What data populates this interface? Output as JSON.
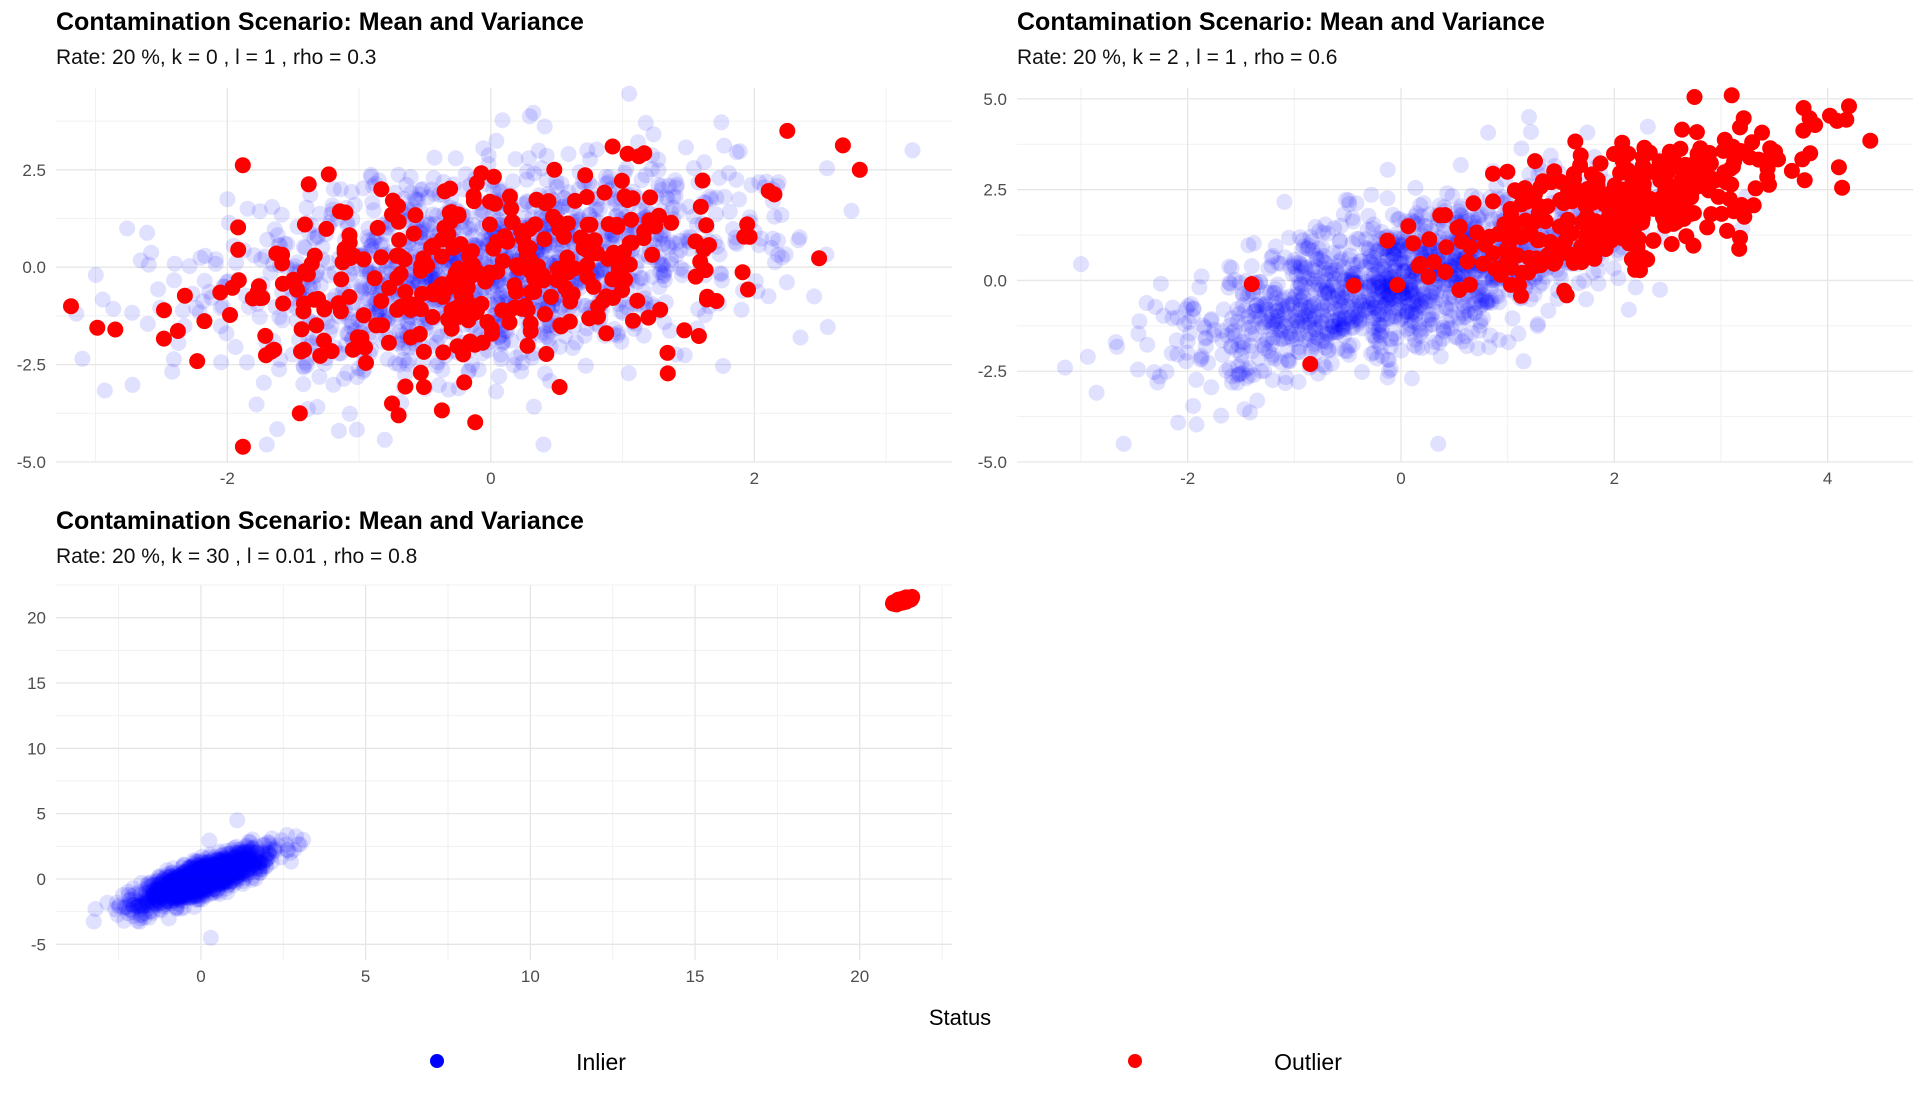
{
  "legend": {
    "title": "Status",
    "items": [
      {
        "label": "Inlier",
        "color": "#0000ff"
      },
      {
        "label": "Outlier",
        "color": "#ff0000"
      }
    ]
  },
  "chart_data": [
    {
      "type": "scatter",
      "title": "Contamination Scenario: Mean and Variance",
      "subtitle": "Rate: 20 %, k = 0 , l = 1 , rho = 0.3",
      "xlabel": "",
      "ylabel": "",
      "xlim": [
        -3.3,
        3.5
      ],
      "ylim": [
        -5.0,
        4.6
      ],
      "x_ticks": [
        -2,
        0,
        2
      ],
      "y_ticks": [
        -5.0,
        -2.5,
        0.0,
        2.5
      ],
      "y_tick_labels": [
        "-5.0",
        "-2.5",
        "0.0",
        "2.5"
      ],
      "grid": true,
      "series": [
        {
          "name": "Inlier",
          "color": "#0000ff",
          "opacity": 0.12,
          "n_points": 1400,
          "center": [
            0,
            0
          ],
          "sd": [
            1,
            1.35
          ],
          "rho": 0.3
        },
        {
          "name": "Outlier",
          "color": "#ff0000",
          "opacity": 1,
          "n_points": 350,
          "center": [
            0,
            0
          ],
          "sd": [
            1,
            1.35
          ],
          "rho": 0.3
        }
      ],
      "extreme_points": [
        {
          "x": 2.8,
          "y": 2.5,
          "status": "Outlier"
        },
        {
          "x": 2.25,
          "y": 3.5,
          "status": "Outlier"
        },
        {
          "x": -2.85,
          "y": -1.6,
          "status": "Outlier"
        },
        {
          "x": -1.45,
          "y": -3.75,
          "status": "Outlier"
        },
        {
          "x": -0.7,
          "y": -3.8,
          "status": "Outlier"
        },
        {
          "x": 3.2,
          "y": 3.0,
          "status": "Inlier"
        },
        {
          "x": 1.05,
          "y": 4.45,
          "status": "Inlier"
        },
        {
          "x": -3.1,
          "y": -2.35,
          "status": "Inlier"
        },
        {
          "x": -1.7,
          "y": -4.55,
          "status": "Inlier"
        },
        {
          "x": 0.4,
          "y": -4.55,
          "status": "Inlier"
        }
      ]
    },
    {
      "type": "scatter",
      "title": "Contamination Scenario: Mean and Variance",
      "subtitle": "Rate: 20 %, k = 2 , l = 1 , rho = 0.6",
      "xlabel": "",
      "ylabel": "",
      "xlim": [
        -3.6,
        4.8
      ],
      "ylim": [
        -5.0,
        5.3
      ],
      "x_ticks": [
        -2,
        0,
        2,
        4
      ],
      "y_ticks": [
        -5.0,
        -2.5,
        0.0,
        2.5,
        5.0
      ],
      "y_tick_labels": [
        "-5.0",
        "-2.5",
        "0.0",
        "2.5",
        "5.0"
      ],
      "grid": true,
      "series": [
        {
          "name": "Inlier",
          "color": "#0000ff",
          "opacity": 0.12,
          "n_points": 1400,
          "center": [
            0,
            0
          ],
          "sd": [
            1,
            1.25
          ],
          "rho": 0.6
        },
        {
          "name": "Outlier",
          "color": "#ff0000",
          "opacity": 1,
          "n_points": 350,
          "center": [
            2,
            2
          ],
          "sd": [
            0.85,
            1.05
          ],
          "rho": 0.6
        }
      ],
      "extreme_points": [
        {
          "x": 4.2,
          "y": 4.8,
          "status": "Outlier"
        },
        {
          "x": 4.4,
          "y": 3.85,
          "status": "Outlier"
        },
        {
          "x": 3.1,
          "y": 5.1,
          "status": "Outlier"
        },
        {
          "x": -0.85,
          "y": -2.3,
          "status": "Outlier"
        },
        {
          "x": -1.4,
          "y": -0.1,
          "status": "Outlier"
        },
        {
          "x": -3.0,
          "y": 0.45,
          "status": "Inlier"
        },
        {
          "x": -3.15,
          "y": -2.4,
          "status": "Inlier"
        },
        {
          "x": -2.6,
          "y": -4.5,
          "status": "Inlier"
        },
        {
          "x": 0.35,
          "y": -4.5,
          "status": "Inlier"
        },
        {
          "x": 1.2,
          "y": 4.5,
          "status": "Inlier"
        }
      ]
    },
    {
      "type": "scatter",
      "title": "Contamination Scenario: Mean and Variance",
      "subtitle": "Rate: 20 %, k = 30 , l = 0.01 , rho = 0.8",
      "xlabel": "",
      "ylabel": "",
      "xlim": [
        -4.4,
        22.8
      ],
      "ylim": [
        -6.2,
        22.5
      ],
      "x_ticks": [
        0,
        5,
        10,
        15,
        20
      ],
      "y_ticks": [
        -5,
        0,
        5,
        10,
        15,
        20
      ],
      "y_tick_labels": [
        "-5",
        "0",
        "5",
        "10",
        "15",
        "20"
      ],
      "grid": true,
      "series": [
        {
          "name": "Inlier",
          "color": "#0000ff",
          "opacity": 0.12,
          "n_points": 1400,
          "center": [
            0,
            0
          ],
          "sd": [
            1,
            1.1
          ],
          "rho": 0.8
        },
        {
          "name": "Outlier",
          "color": "#ff0000",
          "opacity": 1,
          "n_points": 350,
          "center": [
            21.3,
            21.3
          ],
          "sd": [
            0.1,
            0.1
          ],
          "rho": 0.8
        }
      ],
      "extreme_points": [
        {
          "x": 3.1,
          "y": 3.0,
          "status": "Inlier"
        },
        {
          "x": -3.2,
          "y": -2.3,
          "status": "Inlier"
        },
        {
          "x": 1.1,
          "y": 4.5,
          "status": "Inlier"
        },
        {
          "x": 0.3,
          "y": -4.5,
          "status": "Inlier"
        }
      ]
    }
  ]
}
